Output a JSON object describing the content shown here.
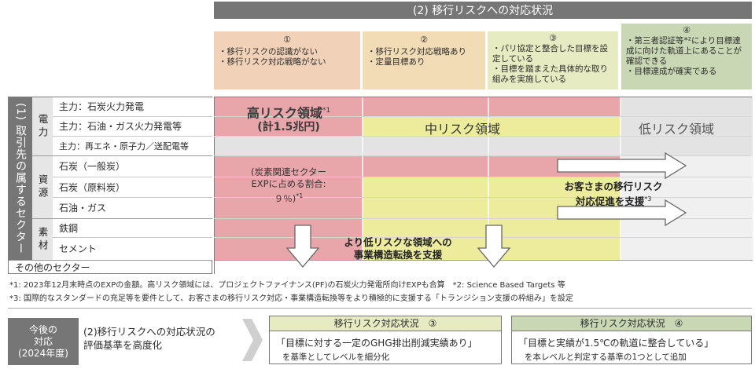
{
  "header": {
    "title": "(2) 移行リスクへの対応状況"
  },
  "stages": [
    {
      "num": "①",
      "items": [
        "移行リスクの認識がない",
        "移行リスク対応戦略がない"
      ],
      "color": "#f1d2b8"
    },
    {
      "num": "②",
      "items": [
        "移行リスク対応戦略あり",
        "定量目標あり"
      ],
      "color": "#f2dcb6"
    },
    {
      "num": "③",
      "items": [
        "パリ協定と整合した目標を設定している",
        "目標を踏まえた具体的な取り組みを実施している"
      ],
      "color": "#e6ebc1"
    },
    {
      "num": "④",
      "items": [
        "第三者認証等*²により目標達成に向けた軌道上にあることが確認できる",
        "目標達成が確実である"
      ],
      "color": "#c9d7b4"
    }
  ],
  "sector_table": {
    "title": "(1) 取引先の属するセクター",
    "categories": [
      {
        "label": "電力",
        "rows": [
          "主力：石炭火力発電",
          "主力：石油・ガス火力発電等",
          "主力：再エネ・原子力／送配電等"
        ]
      },
      {
        "label": "資源",
        "rows": [
          "石炭（一般炭）",
          "石炭（原料炭）",
          "石油・ガス"
        ]
      },
      {
        "label": "素材",
        "rows": [
          "鉄鋼",
          "セメント"
        ]
      }
    ],
    "other": "その他のセクター"
  },
  "zones": {
    "high": {
      "label": "高リスク領域",
      "sup": "*1",
      "amount": "(計1.5兆円)",
      "note": [
        "(炭素関連セクター",
        "EXPに占める割合:",
        "９％)",
        "*1"
      ],
      "color": "#e8a6aa"
    },
    "mid": {
      "label": "中リスク領域",
      "color": "#ecec9c"
    },
    "low": {
      "label": "低リスク領域",
      "color": "#e3e3e3"
    }
  },
  "callouts": {
    "restructure": [
      "より低リスクな領域への",
      "事業構造転換を支援"
    ],
    "promote": [
      "お客さまの移行リスク",
      "対応促進を支援",
      "*3"
    ]
  },
  "notes": [
    "*1: 2023年12月末時点のEXPの金額。高リスク領域には、プロジェクトファイナンス(PF)の石炭火力発電所向けEXPも合算　*2: Science Based Targets 等",
    "*3: 国際的なスタンダードの充足等を要件として、お客さまの移行リスク対応・事業構造転換等をより積極的に支援する「トランジション支援の枠組み」を設定"
  ],
  "future": {
    "label": [
      "今後の",
      "対応",
      "(2024年度)"
    ],
    "text": [
      "(2)移行リスクへの対応状況の",
      "評価基準を高度化"
    ],
    "box3": {
      "title": "移行リスク対応状況　③",
      "main": "「目標に対する一定のGHG排出削減実績あり」",
      "sub": "を基準としてレベルを細分化",
      "color": "#e6ebc1"
    },
    "box4": {
      "title": "移行リスク対応状況　④",
      "main": "「目標と実績が1.5℃の軌道に整合している」",
      "sub": "を本レベルと判定する基準の1つとして追加",
      "color": "#c9d7b4"
    }
  }
}
